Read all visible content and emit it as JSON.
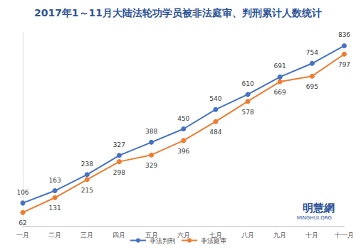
{
  "chart_data": {
    "type": "line",
    "title": "2017年1～11月大陆法轮功学员被非法庭审、判刑累计人数统计",
    "categories": [
      "一月",
      "二月",
      "三月",
      "四月",
      "五月",
      "六月",
      "七月",
      "八月",
      "九月",
      "十月",
      "十一月"
    ],
    "series": [
      {
        "name": "非法判刑",
        "color": "#4472c4",
        "marker": "circle",
        "values": [
          106,
          163,
          238,
          327,
          388,
          450,
          540,
          610,
          691,
          754,
          836
        ]
      },
      {
        "name": "非法庭审",
        "color": "#ed7d31",
        "marker": "circle",
        "values": [
          62,
          131,
          215,
          298,
          329,
          396,
          484,
          578,
          669,
          695,
          797
        ]
      }
    ],
    "ylim": [
      0,
      900
    ],
    "grid": false,
    "legend": "bottom",
    "data_labels": true,
    "tick_labels": "x",
    "annotations": [
      "明慧網",
      "MINGHUI.ORG"
    ]
  }
}
